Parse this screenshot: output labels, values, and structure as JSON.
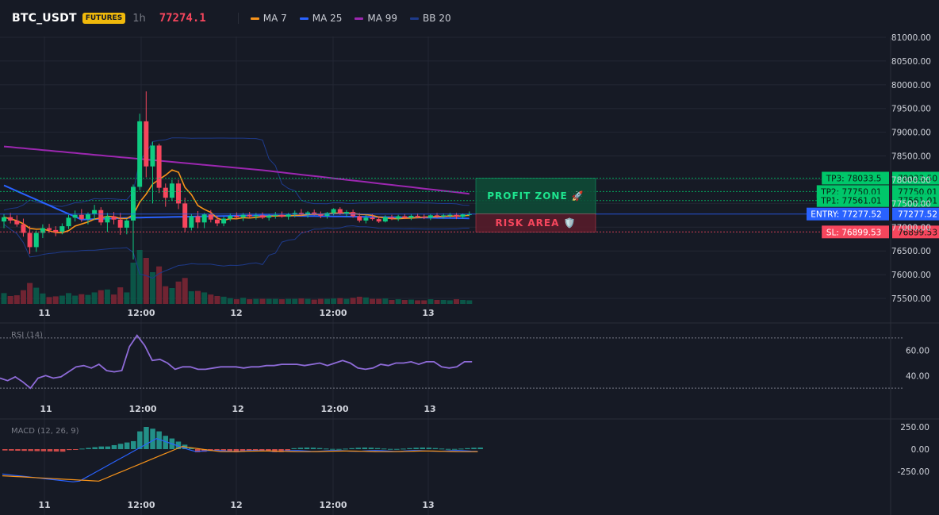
{
  "header": {
    "symbol": "BTC_USDT",
    "market_badge": "FUTURES",
    "timeframe": "1h",
    "last_price": "77274.1",
    "indicators": [
      {
        "label": "MA 7",
        "color": "#f7931a"
      },
      {
        "label": "MA 25",
        "color": "#2962ff"
      },
      {
        "label": "MA 99",
        "color": "#9c27b0"
      },
      {
        "label": "BB 20",
        "color": "#1e3a8a"
      }
    ]
  },
  "price_axis": [
    "81000.00",
    "80500.00",
    "80000.00",
    "79500.00",
    "79000.00",
    "78500.00",
    "78000.00",
    "77500.00",
    "77000.00",
    "76500.00",
    "76000.00",
    "75500.00"
  ],
  "time_axis": [
    "11",
    "12:00",
    "12",
    "12:00",
    "13"
  ],
  "levels": [
    {
      "tag": "TP3: 78033.5",
      "axis": "78033.50",
      "price": 78033.5,
      "color": "#00c76a"
    },
    {
      "tag": "TP2: 77750.01",
      "axis": "77750.01",
      "price": 77750.01,
      "color": "#00c76a"
    },
    {
      "tag": "TP1: 77561.01",
      "axis": "77561.01",
      "price": 77561.01,
      "color": "#00c76a"
    },
    {
      "tag": "ENTRY: 77277.52",
      "axis": "77277.52",
      "price": 77277.52,
      "color": "#2962ff"
    },
    {
      "tag": "SL: 76899.53",
      "axis": "76899.53",
      "price": 76899.53,
      "color": "#f6465d"
    }
  ],
  "zones": {
    "profit": "PROFIT ZONE 🚀",
    "risk": "RISK AREA 🛡️"
  },
  "rsi": {
    "title": "RSI (14)",
    "axis": [
      "60.00",
      "40.00"
    ],
    "values": [
      38,
      36,
      39,
      35,
      30,
      38,
      40,
      38,
      39,
      43,
      47,
      48,
      46,
      49,
      44,
      43,
      44,
      63,
      72,
      64,
      52,
      53,
      50,
      45,
      47,
      47,
      45,
      45,
      46,
      47,
      47,
      47,
      46,
      47,
      47,
      48,
      48,
      49,
      49,
      49,
      48,
      49,
      50,
      48,
      50,
      52,
      50,
      46,
      45,
      46,
      49,
      48,
      50,
      50,
      51,
      49,
      51,
      51,
      47,
      46,
      47,
      51,
      51
    ]
  },
  "macd": {
    "title": "MACD (12, 26, 9)",
    "axis": [
      "250.00",
      "0.00",
      "-250.00"
    ]
  },
  "chart_data": {
    "type": "candlestick",
    "symbol": "BTC_USDT",
    "interval": "1h",
    "candles": [
      {
        "o": 77120,
        "h": 77280,
        "l": 76980,
        "c": 77210
      },
      {
        "o": 77210,
        "h": 77300,
        "l": 77080,
        "c": 77140
      },
      {
        "o": 77140,
        "h": 77250,
        "l": 77010,
        "c": 77060
      },
      {
        "o": 77060,
        "h": 77180,
        "l": 76800,
        "c": 76880
      },
      {
        "o": 76880,
        "h": 77020,
        "l": 76440,
        "c": 76580
      },
      {
        "o": 76580,
        "h": 76930,
        "l": 76480,
        "c": 76880
      },
      {
        "o": 76880,
        "h": 77060,
        "l": 76770,
        "c": 76980
      },
      {
        "o": 76980,
        "h": 77070,
        "l": 76880,
        "c": 76940
      },
      {
        "o": 76940,
        "h": 77020,
        "l": 76810,
        "c": 76900
      },
      {
        "o": 76900,
        "h": 77080,
        "l": 76850,
        "c": 77020
      },
      {
        "o": 77020,
        "h": 77260,
        "l": 76960,
        "c": 77200
      },
      {
        "o": 77200,
        "h": 77350,
        "l": 77120,
        "c": 77260
      },
      {
        "o": 77260,
        "h": 77380,
        "l": 77110,
        "c": 77170
      },
      {
        "o": 77170,
        "h": 77310,
        "l": 77060,
        "c": 77280
      },
      {
        "o": 77280,
        "h": 77470,
        "l": 77150,
        "c": 77360
      },
      {
        "o": 77360,
        "h": 77420,
        "l": 77040,
        "c": 77100
      },
      {
        "o": 77100,
        "h": 77300,
        "l": 76900,
        "c": 77230
      },
      {
        "o": 77230,
        "h": 77320,
        "l": 77060,
        "c": 77160
      },
      {
        "o": 77160,
        "h": 77300,
        "l": 76840,
        "c": 76990
      },
      {
        "o": 76990,
        "h": 77170,
        "l": 76850,
        "c": 77140
      },
      {
        "o": 77140,
        "h": 77900,
        "l": 76320,
        "c": 77850
      },
      {
        "o": 77850,
        "h": 79390,
        "l": 77780,
        "c": 79230
      },
      {
        "o": 79230,
        "h": 79860,
        "l": 78050,
        "c": 78280
      },
      {
        "o": 78280,
        "h": 78800,
        "l": 77500,
        "c": 78720
      },
      {
        "o": 78720,
        "h": 78760,
        "l": 77720,
        "c": 77830
      },
      {
        "o": 77830,
        "h": 77920,
        "l": 77430,
        "c": 77620
      },
      {
        "o": 77620,
        "h": 78000,
        "l": 77560,
        "c": 77920
      },
      {
        "o": 77920,
        "h": 78000,
        "l": 77380,
        "c": 77500
      },
      {
        "o": 77500,
        "h": 77620,
        "l": 76900,
        "c": 76990
      },
      {
        "o": 76990,
        "h": 77280,
        "l": 76930,
        "c": 77230
      },
      {
        "o": 77230,
        "h": 77340,
        "l": 76980,
        "c": 77100
      },
      {
        "o": 77100,
        "h": 77300,
        "l": 76980,
        "c": 77270
      },
      {
        "o": 77270,
        "h": 77360,
        "l": 77100,
        "c": 77160
      },
      {
        "o": 77160,
        "h": 77240,
        "l": 77020,
        "c": 77080
      },
      {
        "o": 77080,
        "h": 77220,
        "l": 77020,
        "c": 77180
      },
      {
        "o": 77180,
        "h": 77290,
        "l": 77130,
        "c": 77240
      },
      {
        "o": 77240,
        "h": 77310,
        "l": 77180,
        "c": 77210
      },
      {
        "o": 77210,
        "h": 77300,
        "l": 77130,
        "c": 77260
      },
      {
        "o": 77260,
        "h": 77320,
        "l": 77190,
        "c": 77230
      },
      {
        "o": 77230,
        "h": 77300,
        "l": 77160,
        "c": 77250
      },
      {
        "o": 77250,
        "h": 77310,
        "l": 77170,
        "c": 77200
      },
      {
        "o": 77200,
        "h": 77280,
        "l": 77140,
        "c": 77240
      },
      {
        "o": 77240,
        "h": 77320,
        "l": 77180,
        "c": 77260
      },
      {
        "o": 77260,
        "h": 77330,
        "l": 77200,
        "c": 77220
      },
      {
        "o": 77220,
        "h": 77300,
        "l": 77160,
        "c": 77270
      },
      {
        "o": 77270,
        "h": 77350,
        "l": 77210,
        "c": 77300
      },
      {
        "o": 77300,
        "h": 77380,
        "l": 77230,
        "c": 77270
      },
      {
        "o": 77270,
        "h": 77340,
        "l": 77200,
        "c": 77310
      },
      {
        "o": 77310,
        "h": 77370,
        "l": 77250,
        "c": 77280
      },
      {
        "o": 77280,
        "h": 77330,
        "l": 77190,
        "c": 77240
      },
      {
        "o": 77240,
        "h": 77320,
        "l": 77180,
        "c": 77300
      },
      {
        "o": 77300,
        "h": 77400,
        "l": 77250,
        "c": 77380
      },
      {
        "o": 77380,
        "h": 77420,
        "l": 77260,
        "c": 77290
      },
      {
        "o": 77290,
        "h": 77360,
        "l": 77220,
        "c": 77320
      },
      {
        "o": 77320,
        "h": 77370,
        "l": 77200,
        "c": 77230
      },
      {
        "o": 77230,
        "h": 77300,
        "l": 77100,
        "c": 77140
      },
      {
        "o": 77140,
        "h": 77260,
        "l": 77080,
        "c": 77200
      },
      {
        "o": 77200,
        "h": 77280,
        "l": 77140,
        "c": 77170
      },
      {
        "o": 77170,
        "h": 77230,
        "l": 77090,
        "c": 77120
      },
      {
        "o": 77120,
        "h": 77250,
        "l": 77100,
        "c": 77210
      },
      {
        "o": 77210,
        "h": 77260,
        "l": 77150,
        "c": 77180
      },
      {
        "o": 77180,
        "h": 77260,
        "l": 77130,
        "c": 77230
      },
      {
        "o": 77230,
        "h": 77280,
        "l": 77170,
        "c": 77200
      },
      {
        "o": 77200,
        "h": 77270,
        "l": 77150,
        "c": 77240
      },
      {
        "o": 77240,
        "h": 77290,
        "l": 77190,
        "c": 77220
      },
      {
        "o": 77220,
        "h": 77270,
        "l": 77170,
        "c": 77200
      },
      {
        "o": 77200,
        "h": 77280,
        "l": 77150,
        "c": 77250
      },
      {
        "o": 77250,
        "h": 77300,
        "l": 77190,
        "c": 77230
      },
      {
        "o": 77230,
        "h": 77290,
        "l": 77180,
        "c": 77250
      },
      {
        "o": 77250,
        "h": 77300,
        "l": 77200,
        "c": 77260
      },
      {
        "o": 77260,
        "h": 77300,
        "l": 77170,
        "c": 77220
      },
      {
        "o": 77220,
        "h": 77290,
        "l": 77180,
        "c": 77270
      },
      {
        "o": 77270,
        "h": 77330,
        "l": 77230,
        "c": 77274.1
      }
    ],
    "y_range": [
      75350,
      81000
    ],
    "price_ticks": [
      81000,
      80500,
      80000,
      79500,
      79000,
      78500,
      78000,
      77500,
      77000,
      76500,
      76000,
      75500
    ],
    "x_labels": [
      "11",
      "12:00",
      "12",
      "12:00",
      "13"
    ],
    "last_price": 77274.1,
    "levels": {
      "TP3": 78033.5,
      "TP2": 77750.01,
      "TP1": 77561.01,
      "ENTRY": 77277.52,
      "SL": 76899.53
    },
    "legend": [
      "MA 7",
      "MA 25",
      "MA 99",
      "BB 20"
    ]
  }
}
